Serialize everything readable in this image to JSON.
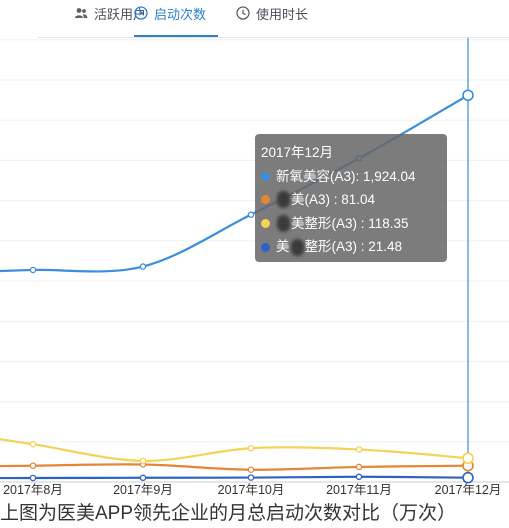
{
  "tabs": [
    {
      "label": "活跃用户",
      "icon": "users-icon",
      "active": false
    },
    {
      "label": "启动次数",
      "icon": "play-circle-icon",
      "active": true
    },
    {
      "label": "使用时长",
      "icon": "clock-icon",
      "active": false
    }
  ],
  "chart_data": {
    "type": "line",
    "categories": [
      "2017年8月",
      "2017年9月",
      "2017年10月",
      "2017年11月",
      "2017年12月"
    ],
    "series": [
      {
        "name": "新氧美容(A3)",
        "color": "#3a8edb",
        "values": [
          1055,
          1072,
          1330,
          1610,
          1924.04
        ]
      },
      {
        "name": "美(A3)",
        "color": "#e58536",
        "values": [
          81,
          87,
          61,
          75,
          81.04
        ]
      },
      {
        "name": "美整形(A3)",
        "color": "#f5d257",
        "values": [
          188,
          105,
          168,
          162,
          118.35
        ]
      },
      {
        "name": "美整形(A3)",
        "color": "#2d63c6",
        "values": [
          20,
          21,
          22,
          26,
          21.48
        ]
      }
    ],
    "ylim": [
      0,
      2200
    ],
    "grid": true,
    "highlight_index": 4,
    "tooltip": {
      "title": "2017年12月",
      "rows": [
        {
          "color": "#3a8edb",
          "prefix": "新氧美容(A3)",
          "blur": false,
          "suffix": "",
          "value": "1,924.04"
        },
        {
          "color": "#e58536",
          "prefix": "",
          "blur": true,
          "suffix": "美(A3)",
          "value": "81.04"
        },
        {
          "color": "#f5d257",
          "prefix": "",
          "blur": true,
          "suffix": "美整形(A3)",
          "value": "118.35"
        },
        {
          "color": "#2d63c6",
          "prefix": "美",
          "blur": true,
          "suffix": "整形(A3)",
          "value": "21.48"
        }
      ]
    },
    "caption": "上图为医美APP领先企业的月总启动次数对比（万次）"
  }
}
